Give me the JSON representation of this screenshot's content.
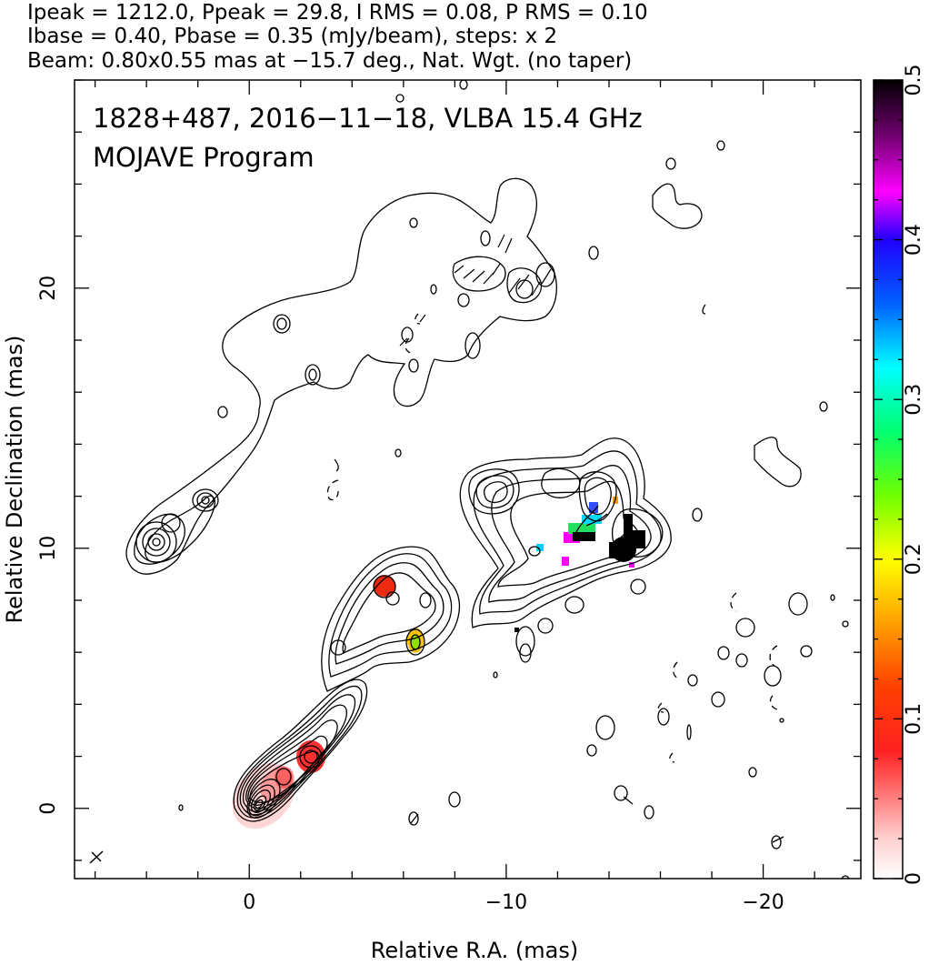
{
  "header": {
    "line1": "Ipeak = 1212.0, Ppeak = 29.8, I RMS = 0.08, P RMS = 0.10",
    "line2": "Ibase = 0.40, Pbase = 0.35 (mJy/beam), steps: x 2",
    "line3": "Beam: 0.80x0.55 mas at −15.7 deg., Nat. Wgt. (no taper)"
  },
  "plot_labels": {
    "source": "1828+487, 2016−11−18, VLBA 15.4 GHz",
    "program": "MOJAVE Program"
  },
  "chart_data": {
    "type": "heatmap",
    "title": "",
    "xlabel": "Relative R.A. (mas)",
    "ylabel": "Relative Declination (mas)",
    "x_reversed": true,
    "xlim": [
      6.8,
      -23.8
    ],
    "ylim": [
      -2.7,
      28
    ],
    "x_ticks": [
      {
        "value": 0,
        "label": "0"
      },
      {
        "value": -10,
        "label": "−10"
      },
      {
        "value": -20,
        "label": "−20"
      }
    ],
    "y_ticks": [
      {
        "value": 0,
        "label": "0"
      },
      {
        "value": 10,
        "label": "10"
      },
      {
        "value": 20,
        "label": "20"
      }
    ],
    "x_minor_step": 2,
    "y_minor_step": 2,
    "colorbar": {
      "min": 0,
      "max": 0.5,
      "ticks": [
        {
          "value": 0,
          "label": "0"
        },
        {
          "value": 0.1,
          "label": "0.1"
        },
        {
          "value": 0.2,
          "label": "0.2"
        },
        {
          "value": 0.3,
          "label": "0.3"
        },
        {
          "value": 0.4,
          "label": "0.4"
        },
        {
          "value": 0.5,
          "label": "0.5"
        }
      ],
      "colors": [
        "#ffffff",
        "#ff0000",
        "#ffa500",
        "#ffff00",
        "#00ff00",
        "#00ffff",
        "#0000ff",
        "#ff00ff",
        "#000000"
      ]
    },
    "core": {
      "x": 0,
      "y": 0
    },
    "polarization_patches": [
      {
        "x": -5.0,
        "y": 8.5,
        "value": 0.1
      },
      {
        "x": -6.1,
        "y": 6.4,
        "value": 0.2
      },
      {
        "x": -12.5,
        "y": 10.8,
        "value": 0.3
      },
      {
        "x": -14.2,
        "y": 9.7,
        "value": 0.5
      }
    ]
  }
}
